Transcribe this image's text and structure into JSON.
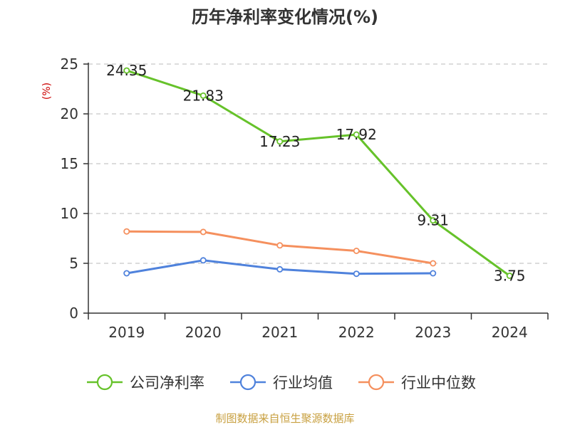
{
  "colors": {
    "company": "#66c22a",
    "avg": "#4f82dc",
    "median": "#f5905e",
    "source": "#c8a040",
    "ylabel": "#cc0000",
    "axis": "#333333",
    "grid": "#c8c8c8"
  },
  "chart_data": {
    "type": "line",
    "title": "历年净利率变化情况(%)",
    "ylabel": "(%)",
    "xlabel": "",
    "ylim": [
      0,
      25
    ],
    "yticks": [
      0,
      5,
      10,
      15,
      20,
      25
    ],
    "grid": "horizontal dashed",
    "legend_position": "bottom",
    "categories": [
      "2019",
      "2020",
      "2021",
      "2022",
      "2023",
      "2024"
    ],
    "series": [
      {
        "name": "公司净利率",
        "color": "#66c22a",
        "values": [
          24.35,
          21.83,
          17.23,
          17.92,
          9.31,
          3.75
        ],
        "labels": [
          "24.35",
          "21.83",
          "17.23",
          "17.92",
          "9.31",
          "3.75"
        ]
      },
      {
        "name": "行业均值",
        "color": "#4f82dc",
        "values": [
          4.0,
          5.3,
          4.4,
          3.95,
          4.0,
          null
        ]
      },
      {
        "name": "行业中位数",
        "color": "#f5905e",
        "values": [
          8.2,
          8.15,
          6.8,
          6.25,
          5.0,
          null
        ]
      }
    ]
  },
  "source": "制图数据来自恒生聚源数据库"
}
